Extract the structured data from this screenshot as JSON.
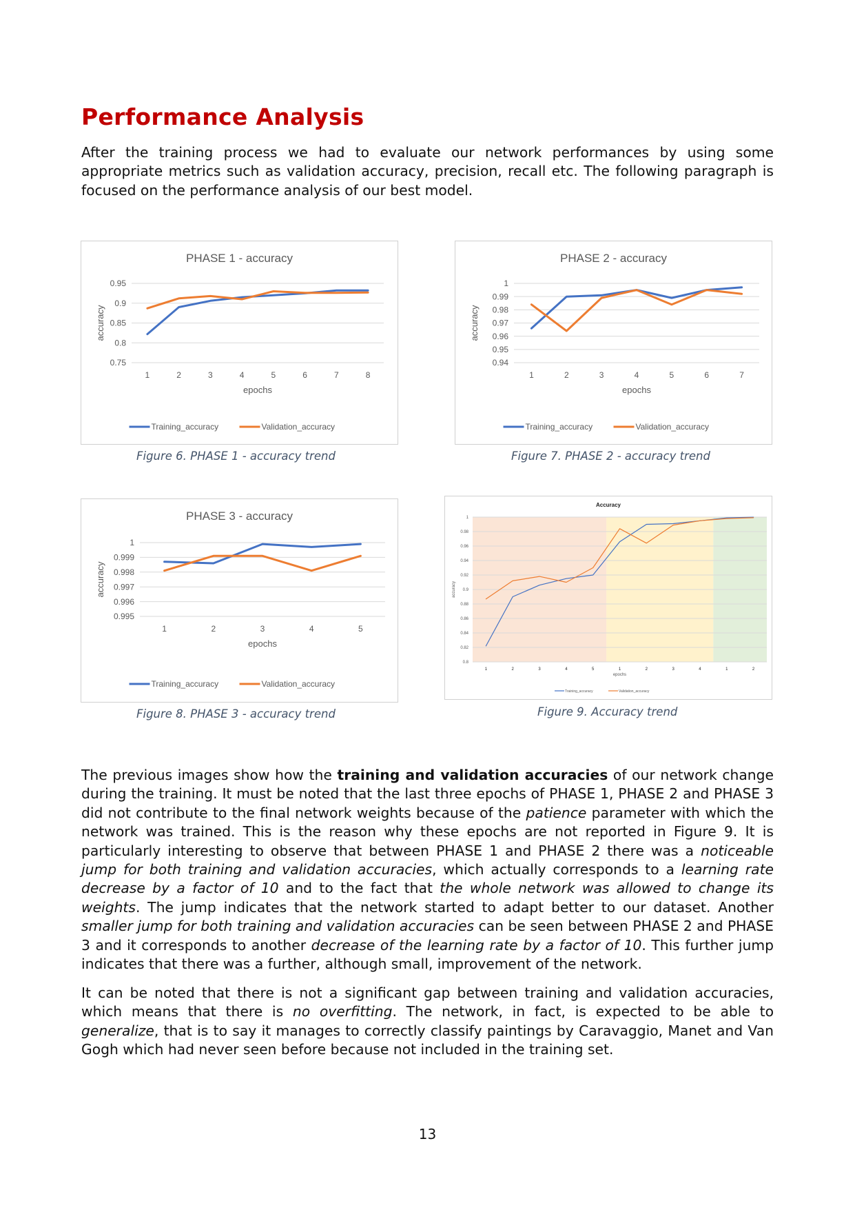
{
  "heading": "Performance Analysis",
  "intro": "After the training process we had to evaluate our network performances by using some appropriate metrics such as validation accuracy, precision, recall etc. The following paragraph is focused on the performance analysis of our best model.",
  "body": {
    "p1": [
      {
        "t": "The previous images show how the "
      },
      {
        "t": "training and validation accuracies",
        "s": "b"
      },
      {
        "t": " of our network change during the training. It must be noted that the last three epochs of PHASE 1, PHASE 2 and PHASE 3 did not contribute to the final network weights because of the "
      },
      {
        "t": "patience",
        "s": "i"
      },
      {
        "t": " parameter with which the network was trained. This is the reason why these epochs are not reported in Figure 9. It is particularly interesting to observe that between PHASE 1 and PHASE 2 there was a "
      },
      {
        "t": "noticeable jump for both training and validation accuracies",
        "s": "i"
      },
      {
        "t": ", which actually corresponds to a "
      },
      {
        "t": "learning rate decrease by a factor of 10",
        "s": "i"
      },
      {
        "t": " and to the fact that "
      },
      {
        "t": "the whole network was allowed to change its weights",
        "s": "i"
      },
      {
        "t": ". The jump indicates that the network started to adapt better to our dataset. Another "
      },
      {
        "t": "smaller jump for both training and validation accuracies",
        "s": "i"
      },
      {
        "t": " can be seen between PHASE 2 and PHASE 3 and it corresponds to another "
      },
      {
        "t": "decrease of the learning rate by a factor of 10",
        "s": "i"
      },
      {
        "t": ". This further jump indicates that there was a further, although small, improvement of the network."
      }
    ],
    "p2": [
      {
        "t": "It can be noted that there is not a significant gap between training and validation accuracies, which means that there is "
      },
      {
        "t": "no overfitting",
        "s": "i"
      },
      {
        "t": ". The network, in fact, is expected to be able to "
      },
      {
        "t": "generalize",
        "s": "i"
      },
      {
        "t": ", that is to say it manages to correctly classify paintings by Caravaggio, Manet and Van Gogh which had never seen before because not included in the training set."
      }
    ]
  },
  "captions": {
    "fig6": "Figure 6. PHASE 1 - accuracy trend",
    "fig7": "Figure 7. PHASE 2 - accuracy trend",
    "fig8": "Figure 8. PHASE 3 - accuracy trend",
    "fig9": "Figure 9. Accuracy trend"
  },
  "page_number": "13",
  "colors": {
    "training": "#4472c4",
    "validation": "#ed7d31",
    "heading": "#c00000",
    "caption": "#44546a",
    "phase1_band": "#fbe5d6",
    "phase2_band": "#fff2cc",
    "phase3_band": "#e2efda"
  },
  "chart_data": [
    {
      "type": "line",
      "title": "PHASE 1 - accuracy",
      "xlabel": "epochs",
      "ylabel": "accuracy",
      "x": [
        "1",
        "2",
        "3",
        "4",
        "5",
        "6",
        "7",
        "8"
      ],
      "ylim": [
        0.75,
        0.95
      ],
      "yticks": [
        "0.75",
        "0.8",
        "0.85",
        "0.9",
        "0.95"
      ],
      "grid": true,
      "legend": "bottom",
      "series": [
        {
          "name": "Training_accuracy",
          "color": "#4472c4",
          "values": [
            0.822,
            0.89,
            0.906,
            0.915,
            0.92,
            0.925,
            0.932,
            0.932
          ]
        },
        {
          "name": "Validation_accuracy",
          "color": "#ed7d31",
          "values": [
            0.887,
            0.912,
            0.918,
            0.91,
            0.93,
            0.926,
            0.926,
            0.927
          ]
        }
      ]
    },
    {
      "type": "line",
      "title": "PHASE 2 - accuracy",
      "xlabel": "epochs",
      "ylabel": "accuracy",
      "x": [
        "1",
        "2",
        "3",
        "4",
        "5",
        "6",
        "7"
      ],
      "ylim": [
        0.94,
        1
      ],
      "yticks": [
        "0.94",
        "0.95",
        "0.96",
        "0.97",
        "0.98",
        "0.99",
        "1"
      ],
      "grid": true,
      "legend": "bottom",
      "series": [
        {
          "name": "Training_accuracy",
          "color": "#4472c4",
          "values": [
            0.966,
            0.99,
            0.991,
            0.995,
            0.989,
            0.995,
            0.997
          ]
        },
        {
          "name": "Validation_accuracy",
          "color": "#ed7d31",
          "values": [
            0.984,
            0.964,
            0.989,
            0.995,
            0.984,
            0.995,
            0.992
          ]
        }
      ]
    },
    {
      "type": "line",
      "title": "PHASE 3 - accuracy",
      "xlabel": "epochs",
      "ylabel": "accuracy",
      "x": [
        "1",
        "2",
        "3",
        "4",
        "5"
      ],
      "ylim": [
        0.995,
        1
      ],
      "yticks": [
        "0.995",
        "0.996",
        "0.997",
        "0.998",
        "0.999",
        "1"
      ],
      "grid": true,
      "legend": "bottom",
      "series": [
        {
          "name": "Training_accuracy",
          "color": "#4472c4",
          "values": [
            0.9987,
            0.9986,
            0.9999,
            0.9997,
            0.9999
          ]
        },
        {
          "name": "Validation_accuracy",
          "color": "#ed7d31",
          "values": [
            0.9981,
            0.9991,
            0.9991,
            0.9981,
            0.9991
          ]
        }
      ]
    },
    {
      "type": "line",
      "title": "Accuracy",
      "xlabel": "epochs",
      "ylabel": "accuracy",
      "x": [
        "1",
        "2",
        "3",
        "4",
        "5",
        "1",
        "2",
        "3",
        "4",
        "1",
        "2"
      ],
      "ylim": [
        0.8,
        1
      ],
      "yticks": [
        "0.8",
        "0.82",
        "0.84",
        "0.86",
        "0.88",
        "0.9",
        "0.92",
        "0.94",
        "0.96",
        "0.98",
        "1"
      ],
      "grid": true,
      "legend": "bottom",
      "phase_bands": [
        {
          "from": 0,
          "to": 5,
          "color": "#fbe5d6"
        },
        {
          "from": 5,
          "to": 9,
          "color": "#fff2cc"
        },
        {
          "from": 9,
          "to": 11,
          "color": "#e2efda"
        }
      ],
      "series": [
        {
          "name": "Training_accuracy",
          "color": "#4472c4",
          "values": [
            0.822,
            0.89,
            0.906,
            0.915,
            0.92,
            0.966,
            0.99,
            0.991,
            0.995,
            0.999,
            0.9999
          ]
        },
        {
          "name": "Validation_accuracy",
          "color": "#ed7d31",
          "values": [
            0.887,
            0.912,
            0.918,
            0.91,
            0.93,
            0.984,
            0.964,
            0.989,
            0.995,
            0.998,
            0.9991
          ]
        }
      ]
    }
  ]
}
